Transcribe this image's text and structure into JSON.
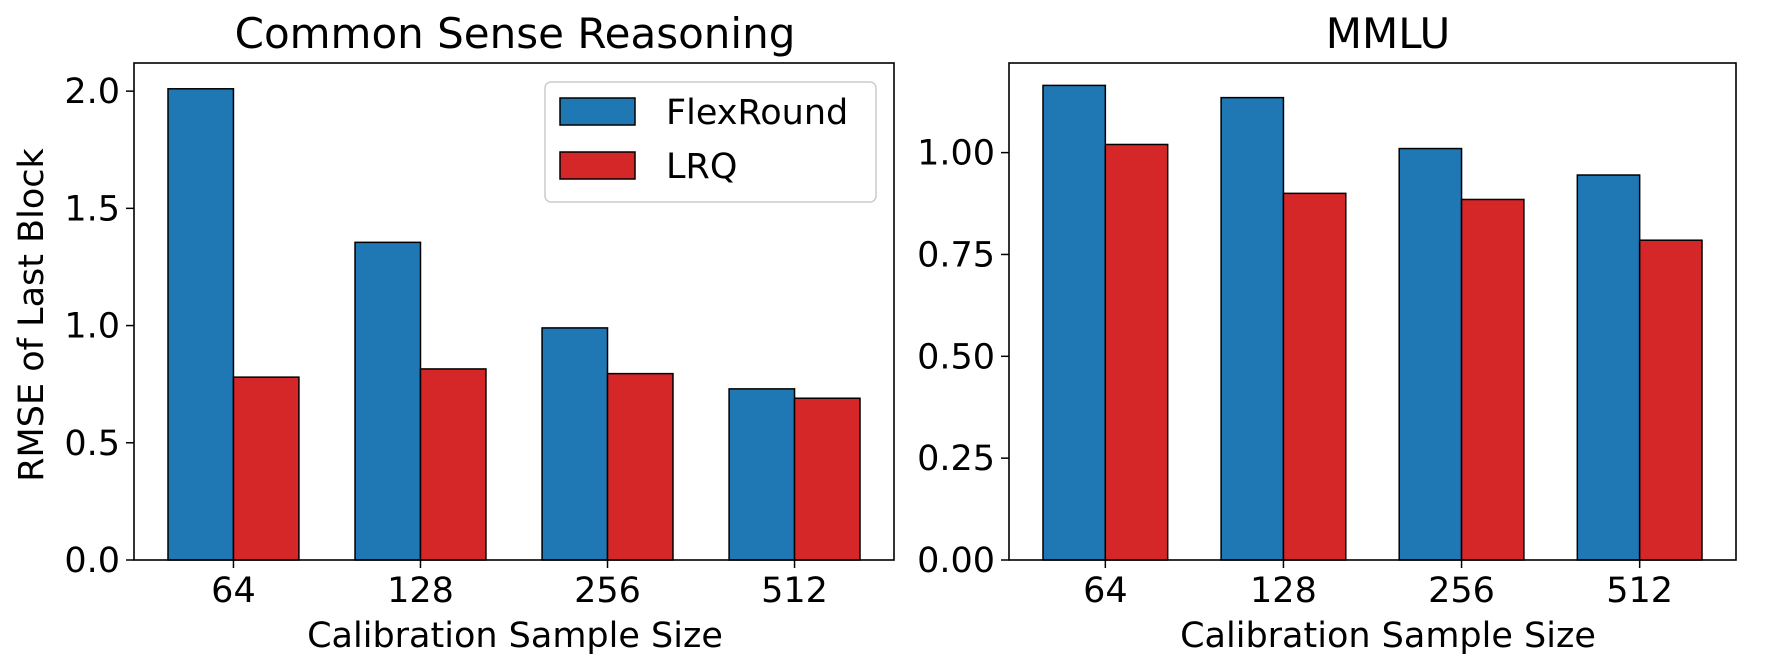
{
  "chart_data": [
    {
      "type": "bar",
      "title": "Common Sense Reasoning",
      "xlabel": "Calibration Sample Size",
      "ylabel": "RMSE of Last Block",
      "categories": [
        "64",
        "128",
        "256",
        "512"
      ],
      "series": [
        {
          "name": "FlexRound",
          "color": "#1f77b4",
          "values": [
            2.01,
            1.355,
            0.99,
            0.73
          ]
        },
        {
          "name": "LRQ",
          "color": "#d62728",
          "values": [
            0.78,
            0.815,
            0.795,
            0.69
          ]
        }
      ],
      "ylim": [
        0,
        2.12
      ],
      "yticks": [
        0.0,
        0.5,
        1.0,
        1.5,
        2.0
      ],
      "ytick_labels": [
        "0.0",
        "0.5",
        "1.0",
        "1.5",
        "2.0"
      ],
      "legend": {
        "position": "top-right",
        "entries": [
          "FlexRound",
          "LRQ"
        ]
      },
      "grid": false
    },
    {
      "type": "bar",
      "title": "MMLU",
      "xlabel": "Calibration Sample Size",
      "ylabel": "",
      "categories": [
        "64",
        "128",
        "256",
        "512"
      ],
      "series": [
        {
          "name": "FlexRound",
          "color": "#1f77b4",
          "values": [
            1.165,
            1.135,
            1.01,
            0.945
          ]
        },
        {
          "name": "LRQ",
          "color": "#d62728",
          "values": [
            1.02,
            0.9,
            0.885,
            0.785
          ]
        }
      ],
      "ylim": [
        0,
        1.22
      ],
      "yticks": [
        0.0,
        0.25,
        0.5,
        0.75,
        1.0
      ],
      "ytick_labels": [
        "0.00",
        "0.25",
        "0.50",
        "0.75",
        "1.00"
      ],
      "grid": false
    }
  ]
}
